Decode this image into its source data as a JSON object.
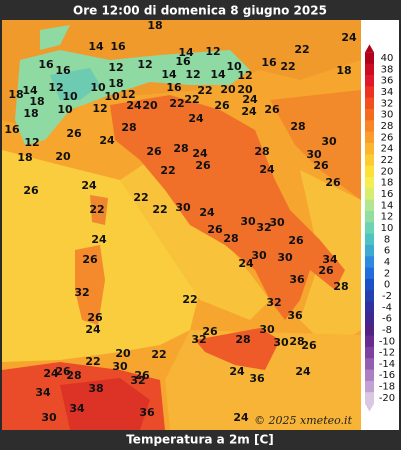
{
  "header": {
    "title": "Ore 12:00 di domenica 8 giugno 2025"
  },
  "map": {
    "labels": [
      18,
      24,
      14,
      16,
      14,
      12,
      22,
      16,
      16,
      12,
      12,
      16,
      10,
      16,
      22,
      18,
      14,
      12,
      14,
      12,
      18,
      14,
      12,
      10,
      18,
      16,
      20,
      18,
      10,
      10,
      12,
      22,
      20,
      24,
      20,
      22,
      22,
      24,
      18,
      10,
      12,
      26,
      24,
      26,
      26,
      28,
      24,
      28,
      24,
      28,
      30,
      16,
      12,
      20,
      18,
      24,
      28,
      26,
      30,
      26,
      22,
      26,
      24,
      26,
      26,
      24,
      22,
      22,
      30,
      24,
      22,
      24,
      30,
      32,
      30,
      26,
      28,
      26,
      26,
      24,
      30,
      30,
      34,
      28,
      36,
      26,
      32,
      22,
      26,
      24,
      32,
      26,
      32,
      28,
      30,
      36,
      30,
      28,
      26,
      20,
      22,
      22,
      30,
      24,
      26,
      28,
      26,
      32,
      38,
      24,
      36,
      34,
      34,
      30,
      36,
      24,
      24
    ]
  },
  "legend": {
    "ticks": [
      40,
      38,
      36,
      34,
      32,
      30,
      28,
      26,
      24,
      22,
      20,
      18,
      16,
      14,
      12,
      10,
      8,
      6,
      4,
      2,
      0,
      -2,
      -4,
      -6,
      -8,
      -10,
      -12,
      -14,
      -16,
      -18,
      -20
    ],
    "colors": [
      "#b0001a",
      "#cc0c22",
      "#e0182a",
      "#ee3222",
      "#f34e1e",
      "#f66a20",
      "#f88526",
      "#fa9d2a",
      "#fcb52e",
      "#fdcb32",
      "#fee03a",
      "#f6ee50",
      "#d6ee70",
      "#b2e690",
      "#90dea2",
      "#6cd4b2",
      "#4ec4c2",
      "#3eaad2",
      "#2e8ade",
      "#226cdc",
      "#1c50c6",
      "#2440ae",
      "#3030a0",
      "#402890",
      "#522282",
      "#662c92",
      "#7c42a2",
      "#9260b2",
      "#aa80c2",
      "#c2a2d2",
      "#dac8e2"
    ]
  },
  "footer": {
    "title": "Temperatura a 2m [C]",
    "credit": "© 2025 xmeteo.it"
  }
}
